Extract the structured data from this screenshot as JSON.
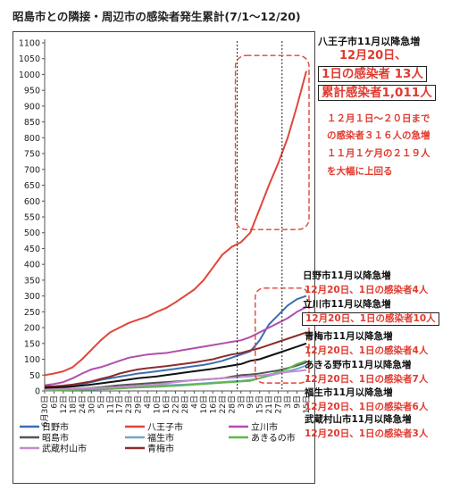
{
  "page": {
    "title": "昭島市との隣接・周辺市の感染者発生累計(7/1〜12/20)"
  },
  "annotations": {
    "hachioji": {
      "heading": "八王子市11月以降急増",
      "line1": "12月20日、",
      "line2": "1日の感染者 13人",
      "line3": "累計感染者1,011人",
      "note1": "１２月１日〜２０日まで",
      "note2": "の感染者３１６人の急増",
      "note3": "１１月１ケ月の２１９人",
      "note4": "を大幅に上回る"
    },
    "hino": {
      "heading": "日野市11月以降急増",
      "detail": "12月20日、1日の感染者4人"
    },
    "tachikawa": {
      "heading": "立川市11月以降急増",
      "detail": "12月20日、1日の感染者10人"
    },
    "ome": {
      "heading": "青梅市11月以降急増",
      "detail": "12月20日、1日の感染者4人"
    },
    "akiruno": {
      "heading": "あきる野市11月以降急増",
      "detail": "12月20日、1日の感染者7人"
    },
    "fussa": {
      "heading": "福生市11月以降急増",
      "detail": "12月20日、1日の感染者6人"
    },
    "musashimurayama": {
      "heading": "武蔵村山市11月以降急増",
      "detail": "12月20日、1日の感染者3人"
    }
  },
  "chart_data": {
    "type": "line",
    "ylim": [
      0,
      1100
    ],
    "yticks": [
      0,
      50,
      100,
      150,
      200,
      250,
      300,
      350,
      400,
      450,
      500,
      550,
      600,
      650,
      700,
      750,
      800,
      850,
      900,
      950,
      1000,
      1050,
      1100
    ],
    "x_tick_labels": [
      "6月30日",
      "6日",
      "12日",
      "18日",
      "24日",
      "30日",
      "5日",
      "11日",
      "17日",
      "23日",
      "29日",
      "4日",
      "10日",
      "16日",
      "22日",
      "28日",
      "4日",
      "10日",
      "16日",
      "22日",
      "28日",
      "3日",
      "9日",
      "15日",
      "21日",
      "27日",
      "3日",
      "9日",
      "15日"
    ],
    "legend_position": "bottom",
    "grid": false,
    "highlight_start_index": 20.6,
    "highlight_nov_index": 25.4,
    "series": [
      {
        "name": "日野市",
        "color": "#3b6fb0",
        "values": [
          12,
          13,
          15,
          18,
          22,
          28,
          35,
          40,
          45,
          50,
          55,
          58,
          62,
          66,
          70,
          74,
          78,
          82,
          88,
          95,
          105,
          115,
          125,
          160,
          210,
          240,
          270,
          290,
          300
        ]
      },
      {
        "name": "八王子市",
        "color": "#e0463a",
        "values": [
          50,
          55,
          62,
          75,
          100,
          130,
          160,
          185,
          200,
          215,
          225,
          235,
          250,
          262,
          280,
          300,
          320,
          350,
          390,
          430,
          455,
          470,
          500,
          575,
          650,
          720,
          800,
          900,
          1011
        ]
      },
      {
        "name": "立川市",
        "color": "#b04fae",
        "values": [
          18,
          22,
          28,
          40,
          55,
          68,
          75,
          85,
          95,
          105,
          110,
          115,
          118,
          120,
          125,
          130,
          135,
          140,
          145,
          150,
          155,
          160,
          170,
          185,
          200,
          215,
          230,
          250,
          265
        ]
      },
      {
        "name": "昭島市",
        "color": "#555555",
        "values": [
          5,
          5,
          6,
          7,
          8,
          10,
          12,
          15,
          18,
          20,
          22,
          24,
          26,
          28,
          30,
          32,
          34,
          36,
          38,
          40,
          45,
          50,
          52,
          55,
          60,
          65,
          72,
          80,
          90
        ]
      },
      {
        "name": "福生市",
        "color": "#6fa8c8",
        "values": [
          2,
          2,
          3,
          3,
          4,
          4,
          5,
          6,
          8,
          10,
          12,
          14,
          16,
          18,
          19,
          20,
          22,
          24,
          26,
          28,
          30,
          32,
          35,
          40,
          48,
          55,
          62,
          70,
          80
        ]
      },
      {
        "name": "あきるの市",
        "color": "#5fb84a",
        "values": [
          1,
          1,
          2,
          3,
          4,
          5,
          6,
          7,
          8,
          10,
          11,
          12,
          13,
          15,
          16,
          18,
          20,
          22,
          24,
          26,
          28,
          30,
          32,
          40,
          50,
          60,
          70,
          85,
          95
        ]
      },
      {
        "name": "武蔵村山市",
        "color": "#c58ad0",
        "values": [
          4,
          5,
          6,
          7,
          8,
          9,
          10,
          11,
          12,
          14,
          16,
          18,
          20,
          24,
          28,
          31,
          34,
          36,
          38,
          40,
          42,
          44,
          46,
          48,
          52,
          56,
          60,
          63,
          66
        ]
      },
      {
        "name": "青梅市",
        "color": "#8b2d2d",
        "values": [
          14,
          15,
          17,
          20,
          25,
          30,
          38,
          45,
          55,
          62,
          68,
          72,
          75,
          78,
          82,
          86,
          90,
          95,
          100,
          108,
          115,
          120,
          128,
          135,
          145,
          155,
          165,
          175,
          185
        ]
      },
      {
        "name": "",
        "color": "#111111",
        "values": [
          10,
          11,
          12,
          14,
          17,
          20,
          24,
          28,
          32,
          36,
          40,
          43,
          46,
          50,
          54,
          58,
          62,
          66,
          70,
          75,
          80,
          85,
          95,
          100,
          110,
          120,
          130,
          140,
          150
        ]
      }
    ]
  }
}
